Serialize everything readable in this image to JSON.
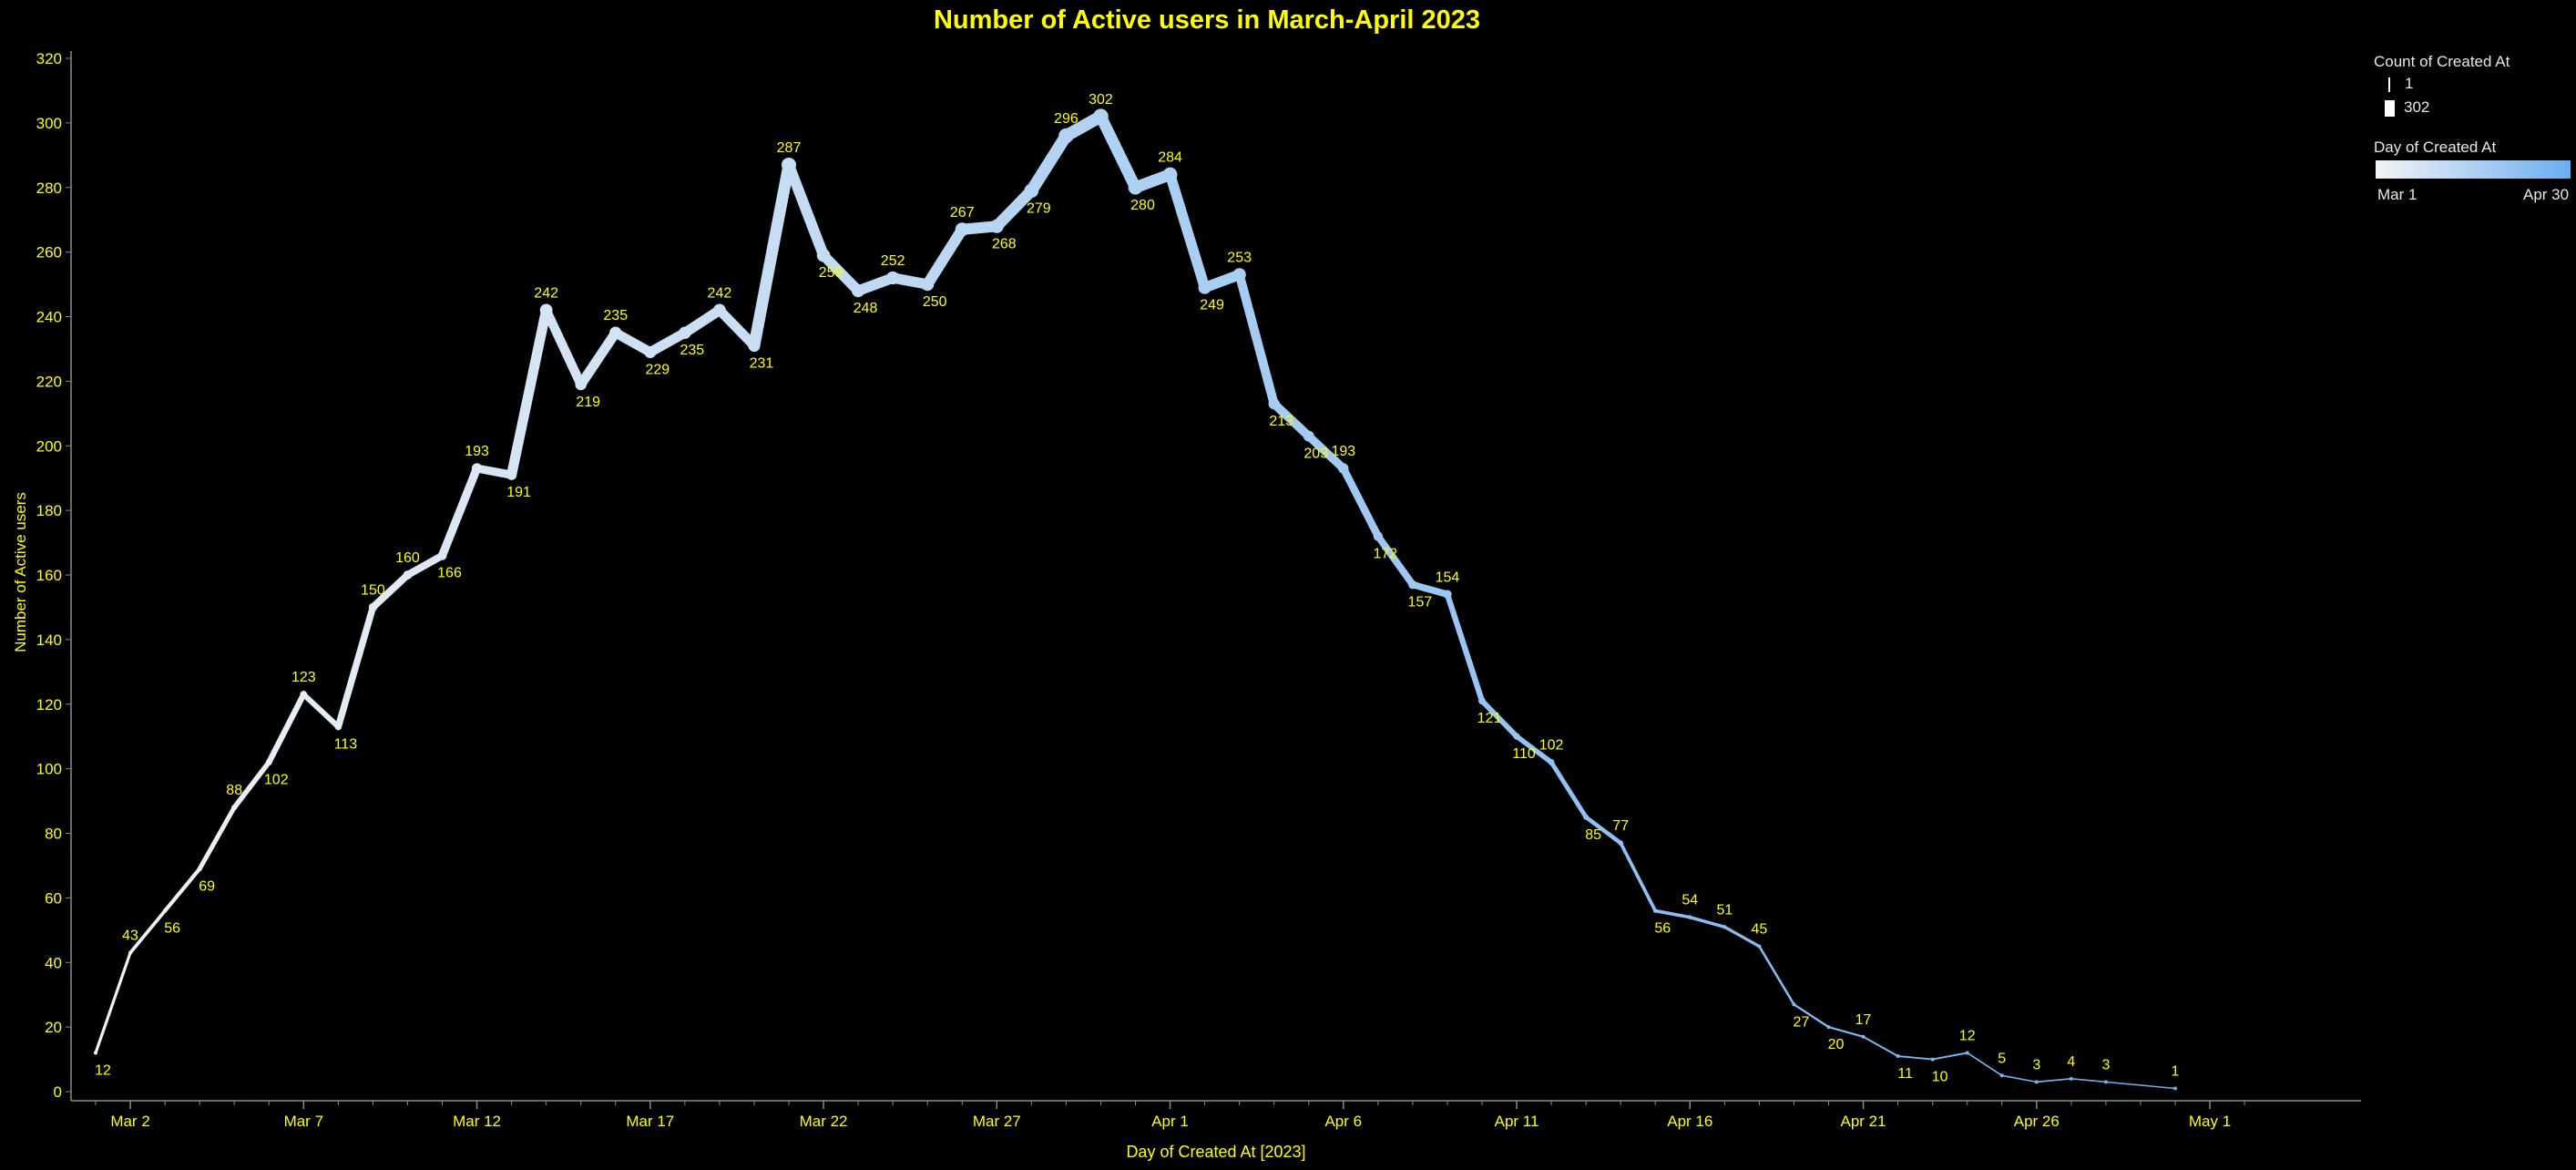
{
  "chart_data": {
    "type": "line",
    "title": "Number of Active users in March-April 2023",
    "xlabel": "Day of Created At [2023]",
    "ylabel": "Number of Active users",
    "x_start": "2023-03-01",
    "x_end": "2023-05-01",
    "ylim": [
      0,
      320
    ],
    "yticks": [
      0,
      20,
      40,
      60,
      80,
      100,
      120,
      140,
      160,
      180,
      200,
      220,
      240,
      260,
      280,
      300,
      320
    ],
    "xticks": [
      {
        "label": "Mar 2",
        "date": "2023-03-02"
      },
      {
        "label": "Mar 7",
        "date": "2023-03-07"
      },
      {
        "label": "Mar 12",
        "date": "2023-03-12"
      },
      {
        "label": "Mar 17",
        "date": "2023-03-17"
      },
      {
        "label": "Mar 22",
        "date": "2023-03-22"
      },
      {
        "label": "Mar 27",
        "date": "2023-03-27"
      },
      {
        "label": "Apr 1",
        "date": "2023-04-01"
      },
      {
        "label": "Apr 6",
        "date": "2023-04-06"
      },
      {
        "label": "Apr 11",
        "date": "2023-04-11"
      },
      {
        "label": "Apr 16",
        "date": "2023-04-16"
      },
      {
        "label": "Apr 21",
        "date": "2023-04-21"
      },
      {
        "label": "Apr 26",
        "date": "2023-04-26"
      },
      {
        "label": "May 1",
        "date": "2023-05-01"
      }
    ],
    "points": [
      {
        "date": "2023-03-01",
        "y": 12,
        "label": "12",
        "pos": "below"
      },
      {
        "date": "2023-03-02",
        "y": 43,
        "label": "43",
        "pos": "above"
      },
      {
        "date": "2023-03-03",
        "y": 56,
        "label": "56",
        "pos": "below"
      },
      {
        "date": "2023-03-04",
        "y": 69,
        "label": "69",
        "pos": "below"
      },
      {
        "date": "2023-03-05",
        "y": 88,
        "label": "88",
        "pos": "above"
      },
      {
        "date": "2023-03-06",
        "y": 102,
        "label": "102",
        "pos": "below"
      },
      {
        "date": "2023-03-07",
        "y": 123,
        "label": "123",
        "pos": "above"
      },
      {
        "date": "2023-03-08",
        "y": 113,
        "label": "113",
        "pos": "below"
      },
      {
        "date": "2023-03-09",
        "y": 150,
        "label": "150",
        "pos": "above"
      },
      {
        "date": "2023-03-10",
        "y": 160,
        "label": "160",
        "pos": "above"
      },
      {
        "date": "2023-03-11",
        "y": 166,
        "label": "166",
        "pos": "below"
      },
      {
        "date": "2023-03-12",
        "y": 193,
        "label": "193",
        "pos": "above"
      },
      {
        "date": "2023-03-13",
        "y": 191,
        "label": "191",
        "pos": "below"
      },
      {
        "date": "2023-03-14",
        "y": 242,
        "label": "242",
        "pos": "above"
      },
      {
        "date": "2023-03-15",
        "y": 219,
        "label": "219",
        "pos": "below"
      },
      {
        "date": "2023-03-16",
        "y": 235,
        "label": "235",
        "pos": "above"
      },
      {
        "date": "2023-03-17",
        "y": 229,
        "label": "229",
        "pos": "below"
      },
      {
        "date": "2023-03-18",
        "y": 235,
        "label": "235",
        "pos": "below"
      },
      {
        "date": "2023-03-19",
        "y": 242,
        "label": "242",
        "pos": "above"
      },
      {
        "date": "2023-03-20",
        "y": 231,
        "label": "231",
        "pos": "below"
      },
      {
        "date": "2023-03-21",
        "y": 287,
        "label": "287",
        "pos": "above"
      },
      {
        "date": "2023-03-22",
        "y": 259,
        "label": "259",
        "pos": "below"
      },
      {
        "date": "2023-03-23",
        "y": 248,
        "label": "248",
        "pos": "below"
      },
      {
        "date": "2023-03-24",
        "y": 252,
        "label": "252",
        "pos": "above"
      },
      {
        "date": "2023-03-25",
        "y": 250,
        "label": "250",
        "pos": "below"
      },
      {
        "date": "2023-03-26",
        "y": 267,
        "label": "267",
        "pos": "above"
      },
      {
        "date": "2023-03-27",
        "y": 268,
        "label": "268",
        "pos": "below"
      },
      {
        "date": "2023-03-28",
        "y": 279,
        "label": "279",
        "pos": "below"
      },
      {
        "date": "2023-03-29",
        "y": 296,
        "label": "296",
        "pos": "above"
      },
      {
        "date": "2023-03-30",
        "y": 302,
        "label": "302",
        "pos": "above"
      },
      {
        "date": "2023-03-31",
        "y": 280,
        "label": "280",
        "pos": "below"
      },
      {
        "date": "2023-04-01",
        "y": 284,
        "label": "284",
        "pos": "above"
      },
      {
        "date": "2023-04-02",
        "y": 249,
        "label": "249",
        "pos": "below"
      },
      {
        "date": "2023-04-03",
        "y": 253,
        "label": "253",
        "pos": "above"
      },
      {
        "date": "2023-04-04",
        "y": 213,
        "label": "213",
        "pos": "below"
      },
      {
        "date": "2023-04-05",
        "y": 203,
        "label": "203",
        "pos": "below"
      },
      {
        "date": "2023-04-06",
        "y": 193,
        "label": "193",
        "pos": "above"
      },
      {
        "date": "2023-04-07",
        "y": 172,
        "label": "172",
        "pos": "below"
      },
      {
        "date": "2023-04-08",
        "y": 157,
        "label": "157",
        "pos": "below"
      },
      {
        "date": "2023-04-09",
        "y": 154,
        "label": "154",
        "pos": "above"
      },
      {
        "date": "2023-04-10",
        "y": 121,
        "label": "121",
        "pos": "below"
      },
      {
        "date": "2023-04-11",
        "y": 110,
        "label": "110",
        "pos": "below"
      },
      {
        "date": "2023-04-12",
        "y": 102,
        "label": "102",
        "pos": "above"
      },
      {
        "date": "2023-04-13",
        "y": 85,
        "label": "85",
        "pos": "below"
      },
      {
        "date": "2023-04-14",
        "y": 77,
        "label": "77",
        "pos": "above"
      },
      {
        "date": "2023-04-15",
        "y": 56,
        "label": "56",
        "pos": "below"
      },
      {
        "date": "2023-04-16",
        "y": 54,
        "label": "54",
        "pos": "above"
      },
      {
        "date": "2023-04-17",
        "y": 51,
        "label": "51",
        "pos": "above"
      },
      {
        "date": "2023-04-18",
        "y": 45,
        "label": "45",
        "pos": "above"
      },
      {
        "date": "2023-04-19",
        "y": 27,
        "label": "27",
        "pos": "below"
      },
      {
        "date": "2023-04-20",
        "y": 20,
        "label": "20",
        "pos": "below"
      },
      {
        "date": "2023-04-21",
        "y": 17,
        "label": "17",
        "pos": "above"
      },
      {
        "date": "2023-04-22",
        "y": 11,
        "label": "11",
        "pos": "below"
      },
      {
        "date": "2023-04-23",
        "y": 10,
        "label": "10",
        "pos": "below"
      },
      {
        "date": "2023-04-24",
        "y": 12,
        "label": "12",
        "pos": "above"
      },
      {
        "date": "2023-04-25",
        "y": 5,
        "label": "5",
        "pos": "above"
      },
      {
        "date": "2023-04-26",
        "y": 3,
        "label": "3",
        "pos": "above"
      },
      {
        "date": "2023-04-27",
        "y": 4,
        "label": "4",
        "pos": "above"
      },
      {
        "date": "2023-04-28",
        "y": 3,
        "label": "3",
        "pos": "above"
      },
      {
        "date": "2023-04-30",
        "y": 1,
        "label": "1",
        "pos": "above"
      }
    ],
    "legend": {
      "size_title": "Count of Created At",
      "size_min": "1",
      "size_max": "302",
      "color_title": "Day of Created At",
      "color_min": "Mar 1",
      "color_max": "Apr 30",
      "color_start": "#f4f4f4",
      "color_end": "#6aaef2"
    },
    "colors": {
      "background": "#000000",
      "text": "#ffff00",
      "axis": "#8a8a8a"
    }
  }
}
